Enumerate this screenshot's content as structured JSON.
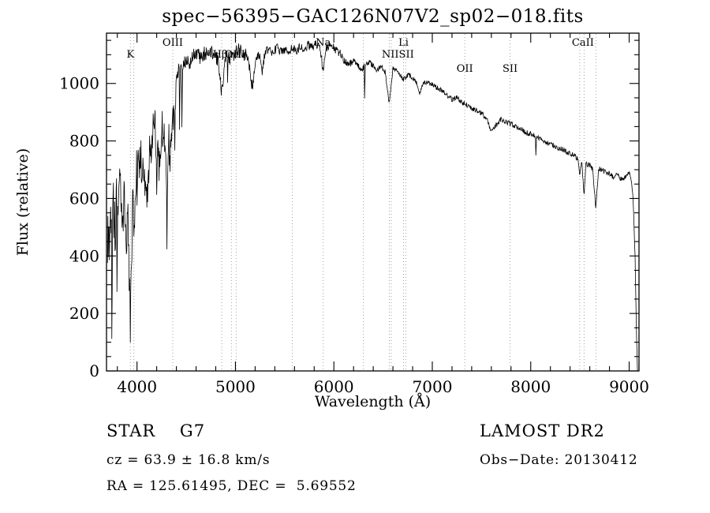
{
  "title": "spec−56395−GAC126N07V2_sp02−018.fits",
  "chart_data": {
    "type": "line",
    "title": "spec−56395−GAC126N07V2_sp02−018.fits",
    "xlabel": "Wavelength (Å)",
    "ylabel": "Flux (relative)",
    "xlim": [
      3690,
      9100
    ],
    "ylim": [
      0,
      1175
    ],
    "x_ticks": [
      4000,
      5000,
      6000,
      7000,
      8000,
      9000
    ],
    "y_ticks": [
      0,
      200,
      400,
      600,
      800,
      1000
    ],
    "x_minor_step": 200,
    "y_minor_step": 50,
    "grid": "dotted vertical lines at labeled spectral features only",
    "legend": "none",
    "series_name": "flux",
    "sample_step": 4,
    "seed": 20130412,
    "spectral_lines": [
      {
        "label": "K",
        "wl": 3933,
        "row": 1
      },
      {
        "label": "OIII",
        "wl": 4363,
        "row": 0
      },
      {
        "label": "Hβ",
        "wl": 4845,
        "row": 1
      },
      {
        "label": "OIII",
        "wl": 4995,
        "row": 1
      },
      {
        "label": "Na",
        "wl": 5892,
        "row": 0
      },
      {
        "label": "Li",
        "wl": 6708,
        "row": 0
      },
      {
        "label": "NIISII",
        "wl": 6650,
        "row": 1
      },
      {
        "label": "OII",
        "wl": 7330,
        "row": 2
      },
      {
        "label": "SII",
        "wl": 7790,
        "row": 2
      },
      {
        "label": "CaII",
        "wl": 8530,
        "row": 0
      }
    ],
    "dotted_lines": [
      3933,
      3968,
      4363,
      4861,
      4959,
      5007,
      5577,
      5892,
      6300,
      6563,
      6583,
      6708,
      6731,
      7330,
      7790,
      8498,
      8542,
      8662
    ],
    "anchors": [
      [
        3700,
        480
      ],
      [
        3715,
        420
      ],
      [
        3730,
        560
      ],
      [
        3745,
        360
      ],
      [
        3760,
        600
      ],
      [
        3775,
        480
      ],
      [
        3790,
        640
      ],
      [
        3810,
        560
      ],
      [
        3830,
        660
      ],
      [
        3850,
        480
      ],
      [
        3870,
        620
      ],
      [
        3890,
        420
      ],
      [
        3905,
        560
      ],
      [
        3920,
        300
      ],
      [
        3933,
        150
      ],
      [
        3945,
        420
      ],
      [
        3960,
        620
      ],
      [
        3970,
        460
      ],
      [
        3985,
        680
      ],
      [
        4000,
        700
      ],
      [
        4030,
        740
      ],
      [
        4060,
        720
      ],
      [
        4101,
        580
      ],
      [
        4130,
        780
      ],
      [
        4170,
        830
      ],
      [
        4200,
        850
      ],
      [
        4227,
        720
      ],
      [
        4250,
        880
      ],
      [
        4280,
        800
      ],
      [
        4300,
        640
      ],
      [
        4320,
        820
      ],
      [
        4340,
        740
      ],
      [
        4360,
        900
      ],
      [
        4383,
        820
      ],
      [
        4400,
        1020
      ],
      [
        4430,
        1060
      ],
      [
        4460,
        1070
      ],
      [
        4500,
        1085
      ],
      [
        4530,
        1070
      ],
      [
        4560,
        1095
      ],
      [
        4600,
        1105
      ],
      [
        4640,
        1090
      ],
      [
        4680,
        1105
      ],
      [
        4720,
        1095
      ],
      [
        4760,
        1110
      ],
      [
        4800,
        1095
      ],
      [
        4830,
        1070
      ],
      [
        4861,
        965
      ],
      [
        4890,
        1080
      ],
      [
        4920,
        1100
      ],
      [
        4957,
        1085
      ],
      [
        5000,
        1105
      ],
      [
        5040,
        1115
      ],
      [
        5080,
        1095
      ],
      [
        5120,
        1105
      ],
      [
        5170,
        985
      ],
      [
        5210,
        1090
      ],
      [
        5250,
        1105
      ],
      [
        5270,
        1040
      ],
      [
        5300,
        1105
      ],
      [
        5340,
        1120
      ],
      [
        5380,
        1105
      ],
      [
        5420,
        1125
      ],
      [
        5460,
        1110
      ],
      [
        5500,
        1120
      ],
      [
        5540,
        1105
      ],
      [
        5580,
        1125
      ],
      [
        5620,
        1115
      ],
      [
        5660,
        1130
      ],
      [
        5700,
        1120
      ],
      [
        5740,
        1135
      ],
      [
        5780,
        1125
      ],
      [
        5820,
        1140
      ],
      [
        5860,
        1120
      ],
      [
        5892,
        1045
      ],
      [
        5920,
        1125
      ],
      [
        5960,
        1135
      ],
      [
        6000,
        1125
      ],
      [
        6050,
        1110
      ],
      [
        6100,
        1085
      ],
      [
        6150,
        1065
      ],
      [
        6200,
        1080
      ],
      [
        6250,
        1060
      ],
      [
        6280,
        1045
      ],
      [
        6320,
        1065
      ],
      [
        6360,
        1075
      ],
      [
        6400,
        1060
      ],
      [
        6440,
        1045
      ],
      [
        6480,
        1060
      ],
      [
        6520,
        1040
      ],
      [
        6563,
        930
      ],
      [
        6600,
        1050
      ],
      [
        6650,
        1040
      ],
      [
        6708,
        1015
      ],
      [
        6760,
        1030
      ],
      [
        6800,
        1020
      ],
      [
        6840,
        1000
      ],
      [
        6870,
        965
      ],
      [
        6910,
        1000
      ],
      [
        6950,
        1005
      ],
      [
        7000,
        995
      ],
      [
        7050,
        985
      ],
      [
        7100,
        975
      ],
      [
        7150,
        960
      ],
      [
        7200,
        945
      ],
      [
        7250,
        950
      ],
      [
        7300,
        935
      ],
      [
        7350,
        925
      ],
      [
        7400,
        915
      ],
      [
        7450,
        905
      ],
      [
        7500,
        895
      ],
      [
        7550,
        880
      ],
      [
        7594,
        830
      ],
      [
        7650,
        855
      ],
      [
        7700,
        875
      ],
      [
        7750,
        865
      ],
      [
        7800,
        860
      ],
      [
        7850,
        850
      ],
      [
        7900,
        840
      ],
      [
        7950,
        830
      ],
      [
        8000,
        825
      ],
      [
        8050,
        815
      ],
      [
        8100,
        805
      ],
      [
        8150,
        795
      ],
      [
        8200,
        790
      ],
      [
        8250,
        780
      ],
      [
        8300,
        775
      ],
      [
        8350,
        765
      ],
      [
        8400,
        755
      ],
      [
        8440,
        750
      ],
      [
        8480,
        735
      ],
      [
        8498,
        680
      ],
      [
        8520,
        730
      ],
      [
        8542,
        600
      ],
      [
        8560,
        720
      ],
      [
        8600,
        715
      ],
      [
        8630,
        700
      ],
      [
        8662,
        565
      ],
      [
        8690,
        705
      ],
      [
        8720,
        700
      ],
      [
        8760,
        690
      ],
      [
        8800,
        685
      ],
      [
        8840,
        675
      ],
      [
        8880,
        685
      ],
      [
        8920,
        665
      ],
      [
        8960,
        675
      ],
      [
        9000,
        690
      ],
      [
        9020,
        670
      ],
      [
        9040,
        600
      ],
      [
        9060,
        400
      ],
      [
        9075,
        120
      ],
      [
        9085,
        0
      ]
    ],
    "noise_regions": [
      {
        "range": [
          3690,
          3800
        ],
        "amp": 110
      },
      {
        "range": [
          3800,
          4400
        ],
        "amp": 75
      },
      {
        "range": [
          4400,
          5200
        ],
        "amp": 26
      },
      {
        "range": [
          5200,
          6200
        ],
        "amp": 16
      },
      {
        "range": [
          6200,
          9100
        ],
        "amp": 9
      }
    ],
    "spike_regions": [
      {
        "range": [
          3700,
          4500
        ],
        "prob": 0.05,
        "depth": [
          80,
          320
        ]
      },
      {
        "range": [
          4500,
          6900
        ],
        "prob": 0.012,
        "depth": [
          50,
          160
        ]
      },
      {
        "range": [
          6900,
          8400
        ],
        "prob": 0.004,
        "depth": [
          40,
          90
        ]
      }
    ]
  },
  "footer": {
    "class_label": "STAR    G7",
    "survey": "LAMOST DR2",
    "cz": "cz = 63.9 ± 16.8 km/s",
    "obs_date": "Obs−Date: 20130412",
    "radec": "RA = 125.61495, DEC =  5.69552"
  }
}
